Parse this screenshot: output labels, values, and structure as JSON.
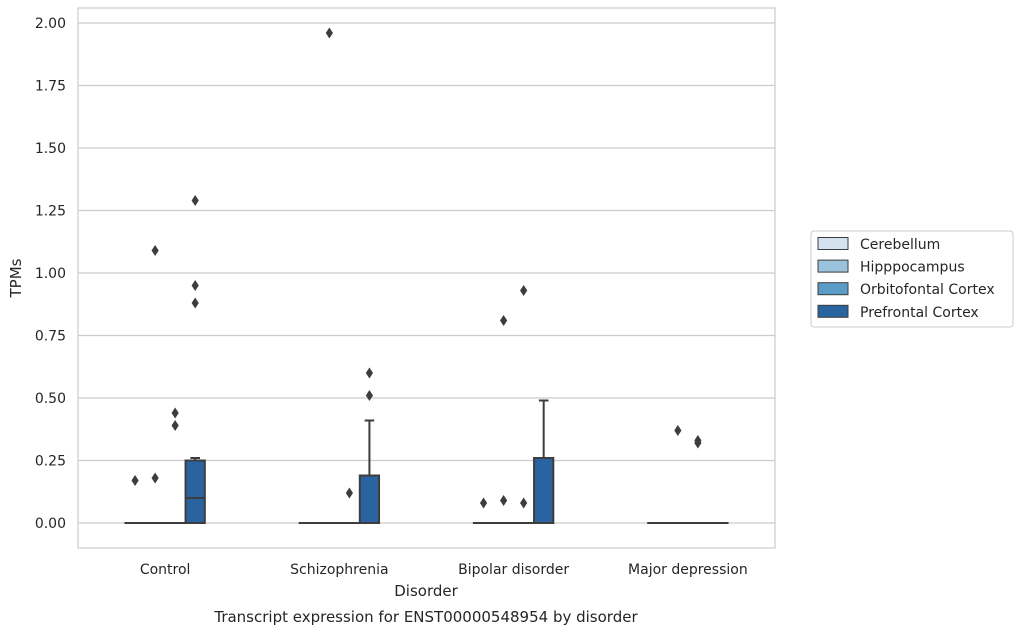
{
  "chart_data": {
    "type": "boxplot",
    "caption": "Transcript expression for ENST00000548954 by disorder",
    "xlabel": "Disorder",
    "ylabel": "TPMs",
    "ylim": [
      -0.1,
      2.06
    ],
    "yticks": [
      "0.00",
      "0.25",
      "0.50",
      "0.75",
      "1.00",
      "1.25",
      "1.50",
      "1.75",
      "2.00"
    ],
    "grid": "horizontal",
    "legend_position": "right",
    "categories": [
      "Control",
      "Schizophrenia",
      "Bipolar disorder",
      "Major depression"
    ],
    "series": [
      {
        "name": "Cerebellum",
        "color": "#d4e2ef",
        "boxes": [
          {
            "q1": 0,
            "median": 0,
            "q3": 0,
            "whisker_low": 0,
            "whisker_high": 0,
            "outliers": [
              0.17
            ]
          },
          {
            "q1": 0,
            "median": 0,
            "q3": 0,
            "whisker_low": 0,
            "whisker_high": 0,
            "outliers": []
          },
          {
            "q1": 0,
            "median": 0,
            "q3": 0,
            "whisker_low": 0,
            "whisker_high": 0,
            "outliers": [
              0.08
            ]
          },
          {
            "q1": 0,
            "median": 0,
            "q3": 0,
            "whisker_low": 0,
            "whisker_high": 0,
            "outliers": []
          }
        ]
      },
      {
        "name": "Hipppocampus",
        "color": "#9ac2dc",
        "boxes": [
          {
            "q1": 0,
            "median": 0,
            "q3": 0,
            "whisker_low": 0,
            "whisker_high": 0,
            "outliers": [
              0.18,
              1.09
            ]
          },
          {
            "q1": 0,
            "median": 0,
            "q3": 0,
            "whisker_low": 0,
            "whisker_high": 0,
            "outliers": [
              1.96
            ]
          },
          {
            "q1": 0,
            "median": 0,
            "q3": 0,
            "whisker_low": 0,
            "whisker_high": 0,
            "outliers": [
              0.09,
              0.81
            ]
          },
          {
            "q1": 0,
            "median": 0,
            "q3": 0,
            "whisker_low": 0,
            "whisker_high": 0,
            "outliers": [
              0.37
            ]
          }
        ]
      },
      {
        "name": "Orbitofontal Cortex",
        "color": "#5b9bc8",
        "boxes": [
          {
            "q1": 0,
            "median": 0,
            "q3": 0,
            "whisker_low": 0,
            "whisker_high": 0,
            "outliers": [
              0.39,
              0.44
            ]
          },
          {
            "q1": 0,
            "median": 0,
            "q3": 0,
            "whisker_low": 0,
            "whisker_high": 0,
            "outliers": [
              0.12
            ]
          },
          {
            "q1": 0,
            "median": 0,
            "q3": 0,
            "whisker_low": 0,
            "whisker_high": 0,
            "outliers": [
              0.08,
              0.93
            ]
          },
          {
            "q1": 0,
            "median": 0,
            "q3": 0,
            "whisker_low": 0,
            "whisker_high": 0,
            "outliers": [
              0.32,
              0.33
            ]
          }
        ]
      },
      {
        "name": "Prefrontal Cortex",
        "color": "#2a64a0",
        "boxes": [
          {
            "q1": 0,
            "median": 0.1,
            "q3": 0.25,
            "whisker_low": 0,
            "whisker_high": 0.26,
            "outliers": [
              0.88,
              0.95,
              1.29
            ]
          },
          {
            "q1": 0,
            "median": 0,
            "q3": 0.19,
            "whisker_low": 0,
            "whisker_high": 0.41,
            "outliers": [
              0.51,
              0.6
            ]
          },
          {
            "q1": 0,
            "median": 0,
            "q3": 0.26,
            "whisker_low": 0,
            "whisker_high": 0.49,
            "outliers": []
          },
          {
            "q1": 0,
            "median": 0,
            "q3": 0,
            "whisker_low": 0,
            "whisker_high": 0,
            "outliers": []
          }
        ]
      }
    ]
  }
}
